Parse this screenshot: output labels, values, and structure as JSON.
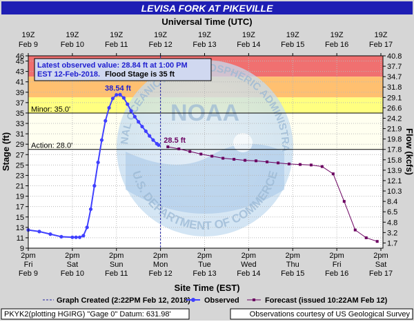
{
  "chart_data": {
    "type": "line",
    "title": "LEVISA FORK AT PIKEVILLE",
    "top_axis_title": "Universal Time (UTC)",
    "xlabel": "Site Time (EST)",
    "ylabel_left": "Stage (ft)",
    "ylabel_right": "Flow (kcfs)",
    "x_range": [
      "2018-02-09 14:00",
      "2018-02-17 14:00"
    ],
    "ylim": [
      9,
      46
    ],
    "grid": true,
    "colors": {
      "title_bg": "#1e1eb4",
      "title_text": "#ffffff",
      "observed": "#4040ff",
      "forecast": "#6b0060",
      "band_major": "#f07070",
      "band_moderate": "#ffc070",
      "band_minor": "#ffff80",
      "band_action": "#fffff0",
      "plot_bg": "#ffffff",
      "outer_bg": "#d6d6d6",
      "annot_box": "#d0d8f0"
    },
    "y_ticks_left": [
      "9",
      "11",
      "13",
      "15",
      "17",
      "19",
      "21",
      "23",
      "25",
      "27",
      "29",
      "31",
      "33",
      "35",
      "37",
      "39",
      "41",
      "43",
      "45",
      "46"
    ],
    "y_ticks_right": [
      "1.7",
      "3.2",
      "4.8",
      "6.5",
      "8.4",
      "10.3",
      "12.1",
      "13.9",
      "15.8",
      "17.8",
      "19.8",
      "21.9",
      "24.2",
      "26.6",
      "29.1",
      "31.8",
      "34.7",
      "37.7",
      "40.8"
    ],
    "right_tick_stages": [
      10,
      12,
      14,
      16,
      18,
      20,
      22,
      24,
      26,
      28,
      30,
      32,
      34,
      36,
      38,
      40,
      42,
      44,
      46
    ],
    "top_ticks": [
      {
        "l1": "19Z",
        "l2": "Feb  9"
      },
      {
        "l1": "19Z",
        "l2": "Feb 10"
      },
      {
        "l1": "19Z",
        "l2": "Feb 11"
      },
      {
        "l1": "19Z",
        "l2": "Feb 12"
      },
      {
        "l1": "19Z",
        "l2": "Feb 13"
      },
      {
        "l1": "19Z",
        "l2": "Feb 14"
      },
      {
        "l1": "19Z",
        "l2": "Feb 15"
      },
      {
        "l1": "19Z",
        "l2": "Feb 16"
      },
      {
        "l1": "19Z",
        "l2": "Feb 17"
      }
    ],
    "bottom_ticks": [
      {
        "l1": "2pm",
        "l2": "Fri",
        "l3": "Feb 9"
      },
      {
        "l1": "2pm",
        "l2": "Sat",
        "l3": "Feb 10"
      },
      {
        "l1": "2pm",
        "l2": "Sun",
        "l3": "Feb 11"
      },
      {
        "l1": "2pm",
        "l2": "Mon",
        "l3": "Feb 12"
      },
      {
        "l1": "2pm",
        "l2": "Tue",
        "l3": "Feb 13"
      },
      {
        "l1": "2pm",
        "l2": "Wed",
        "l3": "Feb 14"
      },
      {
        "l1": "2pm",
        "l2": "Thu",
        "l3": "Feb 15"
      },
      {
        "l1": "2pm",
        "l2": "Fri",
        "l3": "Feb 16"
      },
      {
        "l1": "2pm",
        "l2": "Sat",
        "l3": "Feb 17"
      }
    ],
    "flood_bands": [
      {
        "name": "major",
        "from": 42,
        "to": 46
      },
      {
        "name": "moderate",
        "from": 38,
        "to": 42
      },
      {
        "name": "minor",
        "from": 35,
        "to": 38
      },
      {
        "name": "action",
        "from": 28,
        "to": 35
      }
    ],
    "thresholds": [
      {
        "label": "Minor: 35.0'",
        "stage": 35
      },
      {
        "label": "Action: 28.0'",
        "stage": 28
      }
    ],
    "graph_created_day": 3.0,
    "series": [
      {
        "name": "Observed",
        "x_days": [
          0.0,
          0.25,
          0.5,
          0.75,
          1.0,
          1.083,
          1.167,
          1.25,
          1.333,
          1.417,
          1.5,
          1.583,
          1.667,
          1.75,
          1.833,
          1.917,
          2.0,
          2.083,
          2.167,
          2.25,
          2.333,
          2.417,
          2.5,
          2.583,
          2.667,
          2.75,
          2.833,
          2.917,
          2.958
        ],
        "values": [
          12.5,
          12.2,
          11.7,
          11.2,
          11.1,
          11.1,
          11.1,
          11.4,
          13.0,
          16.5,
          21.0,
          25.5,
          29.8,
          33.5,
          36.0,
          37.8,
          38.5,
          38.54,
          37.9,
          36.7,
          35.4,
          34.3,
          33.3,
          32.4,
          31.5,
          30.6,
          29.8,
          29.1,
          28.84
        ]
      },
      {
        "name": "Forecast (issued 10:22AM Feb 12)",
        "x_days": [
          3.167,
          3.417,
          3.667,
          3.917,
          4.167,
          4.417,
          4.667,
          4.917,
          5.167,
          5.417,
          5.667,
          5.917,
          6.167,
          6.417,
          6.667,
          6.917,
          7.167,
          7.417,
          7.667,
          7.917
        ],
        "values": [
          28.5,
          28.1,
          27.6,
          27.1,
          26.7,
          26.3,
          26.1,
          25.9,
          25.8,
          25.6,
          25.4,
          25.2,
          25.1,
          25.0,
          24.7,
          23.3,
          18.0,
          12.5,
          11.0,
          10.3
        ]
      }
    ],
    "peak_label": "38.54 ft",
    "peak_point": {
      "x_day": 2.083,
      "stage": 38.54
    },
    "forecast_label": "28.5 ft",
    "forecast_label_point": {
      "x_day": 3.167,
      "stage": 28.5
    },
    "annotation_line1": "Latest observed value: 28.84 ft at 1:00 PM",
    "annotation_line2_prefix": "EST 12-Feb-2018.",
    "annotation_line2_suffix": "Flood Stage is 35 ft",
    "legend_graph_created": "Graph Created (2:22PM Feb 12, 2018)",
    "legend_observed": "Observed",
    "legend_forecast": "Forecast (issued 10:22AM Feb 12)",
    "footer_left": "PKYK2(plotting HGIRG) \"Gage 0\" Datum:  631.98'",
    "footer_right": "Observations courtesy of US Geological Survey",
    "watermark_top": "NATIONAL OCEANIC AND ATMOSPHERIC ADMINISTRATION",
    "watermark_bottom": "U.S. DEPARTMENT OF COMMERCE",
    "watermark_center": "NOAA"
  }
}
